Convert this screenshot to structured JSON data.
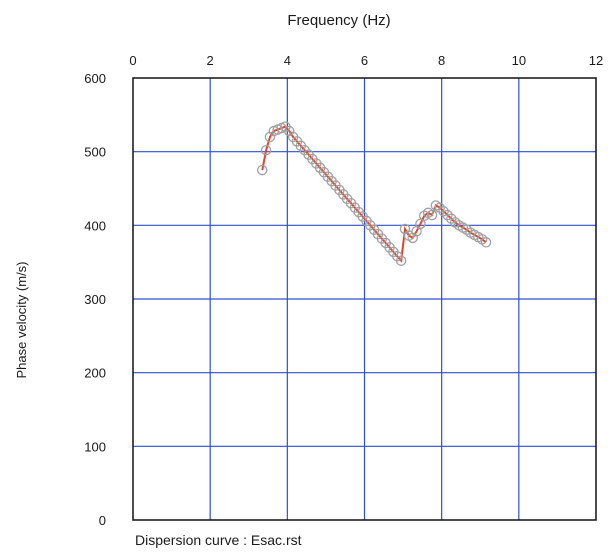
{
  "chart_data": {
    "type": "line",
    "title": "",
    "xlabel": "Frequency (Hz)",
    "ylabel": "Phase velocity (m/s)",
    "caption": "Dispersion curve : Esac.rst",
    "xlim": [
      0,
      12
    ],
    "ylim": [
      0,
      600
    ],
    "x_ticks": [
      0,
      2,
      4,
      6,
      8,
      10,
      12
    ],
    "y_ticks": [
      0,
      100,
      200,
      300,
      400,
      500,
      600
    ],
    "x_axis_position": "top",
    "grid": true,
    "grid_color": "#2f4fcf",
    "series": [
      {
        "line_color": "#e0442a",
        "marker_color": "#a0a0a0",
        "marker": "open-circle",
        "x": [
          3.35,
          3.45,
          3.55,
          3.65,
          3.75,
          3.85,
          3.95,
          4.05,
          4.15,
          4.25,
          4.35,
          4.45,
          4.55,
          4.65,
          4.75,
          4.85,
          4.95,
          5.05,
          5.15,
          5.25,
          5.35,
          5.45,
          5.55,
          5.65,
          5.75,
          5.85,
          5.95,
          6.05,
          6.15,
          6.25,
          6.35,
          6.45,
          6.55,
          6.65,
          6.75,
          6.85,
          6.95,
          7.05,
          7.15,
          7.25,
          7.35,
          7.45,
          7.55,
          7.65,
          7.75,
          7.85,
          7.95,
          8.05,
          8.15,
          8.25,
          8.35,
          8.45,
          8.55,
          8.65,
          8.75,
          8.85,
          8.95,
          9.05,
          9.15
        ],
        "y": [
          475,
          502,
          520,
          528,
          530,
          532,
          534,
          528,
          520,
          514,
          508,
          502,
          496,
          490,
          484,
          478,
          472,
          466,
          460,
          454,
          448,
          442,
          436,
          430,
          424,
          418,
          412,
          406,
          400,
          394,
          388,
          382,
          376,
          370,
          364,
          358,
          352,
          395,
          386,
          383,
          392,
          402,
          413,
          417,
          414,
          427,
          424,
          419,
          414,
          409,
          404,
          400,
          397,
          394,
          390,
          387,
          384,
          381,
          377
        ]
      }
    ]
  }
}
